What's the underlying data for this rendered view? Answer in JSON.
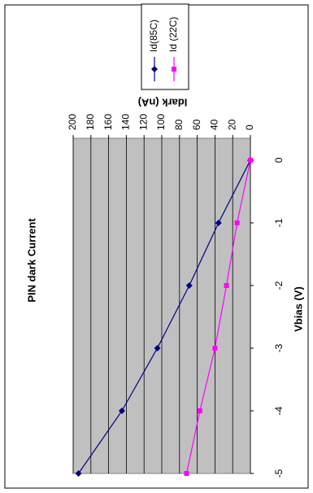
{
  "chart_data": {
    "type": "line",
    "title": "PIN dark Current",
    "x_label": "Vbias (V)",
    "y_label": "Idark (nA)",
    "x": [
      0,
      -1,
      -2,
      -3,
      -4,
      -5
    ],
    "xlim": [
      0.35,
      -5
    ],
    "xticks": [
      0,
      -1,
      -2,
      -3,
      -4,
      -5
    ],
    "ylim": [
      0,
      200
    ],
    "yticks": [
      0,
      20,
      40,
      60,
      80,
      100,
      120,
      140,
      160,
      180,
      200
    ],
    "grid": true,
    "legend": "right",
    "series": [
      {
        "name": "Id(85C)",
        "color": "#000080",
        "marker": "diamond",
        "values": [
          0,
          36,
          69,
          105,
          145,
          194
        ]
      },
      {
        "name": "Id (22C)",
        "color": "#ff00ff",
        "marker": "square",
        "values": [
          0,
          15,
          27,
          40,
          57,
          72
        ]
      }
    ]
  }
}
